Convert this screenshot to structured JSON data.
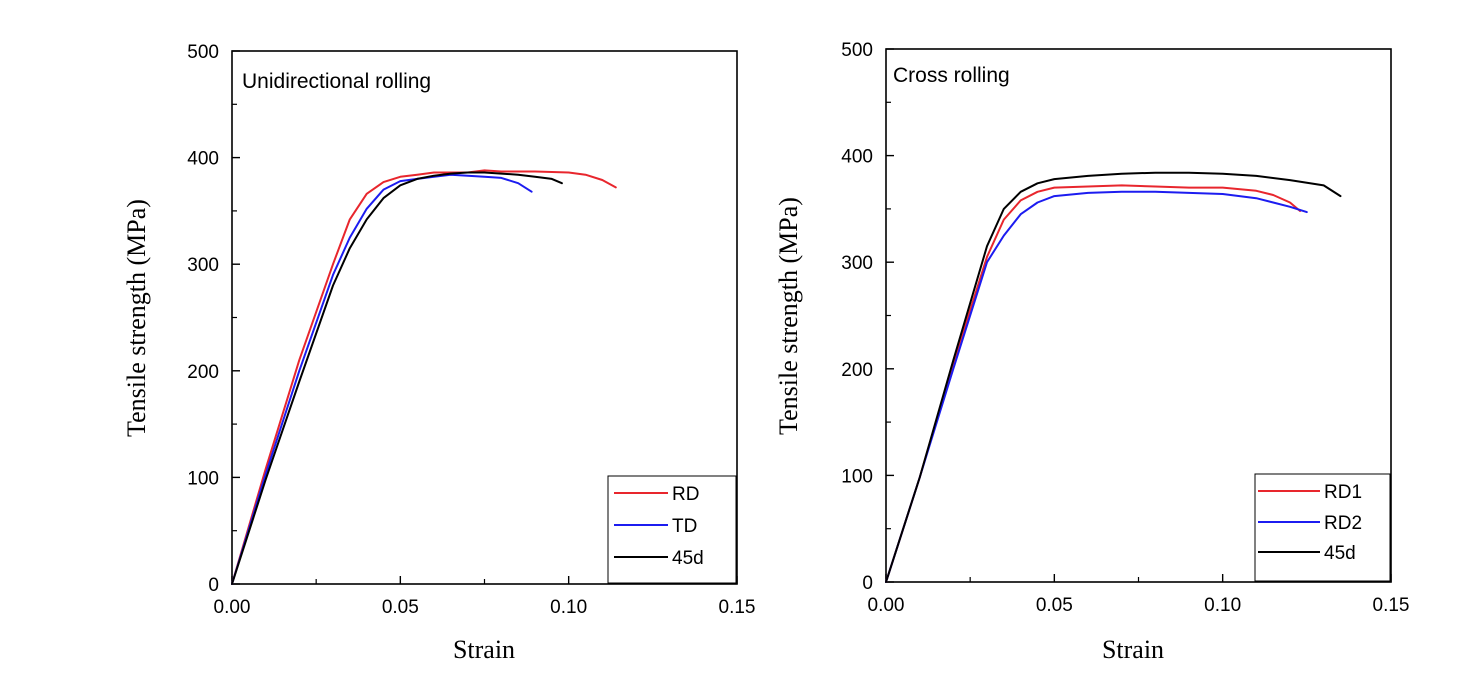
{
  "chart_data": [
    {
      "type": "line",
      "title": "Unidirectional rolling",
      "xlabel": "Strain",
      "ylabel": "Tensile strength (MPa)",
      "xlim": [
        0,
        0.15
      ],
      "ylim": [
        0,
        500
      ],
      "xticks": [
        "0.00",
        "0.05",
        "0.10",
        "0.15"
      ],
      "yticks": [
        "0",
        "100",
        "200",
        "300",
        "400",
        "500"
      ],
      "grid": false,
      "legend": "bottom-right",
      "series": [
        {
          "name": "RD",
          "color": "#e8262d",
          "x": [
            0,
            0.01,
            0.02,
            0.03,
            0.035,
            0.04,
            0.045,
            0.05,
            0.055,
            0.06,
            0.07,
            0.075,
            0.08,
            0.09,
            0.1,
            0.105,
            0.11,
            0.114
          ],
          "y": [
            0,
            108,
            210,
            300,
            342,
            366,
            377,
            382,
            384,
            386,
            386,
            388,
            387,
            387,
            386,
            384,
            379,
            372
          ]
        },
        {
          "name": "TD",
          "color": "#1c1cf0",
          "x": [
            0,
            0.01,
            0.02,
            0.03,
            0.035,
            0.04,
            0.045,
            0.05,
            0.055,
            0.06,
            0.065,
            0.07,
            0.075,
            0.08,
            0.085,
            0.089
          ],
          "y": [
            0,
            103,
            200,
            290,
            325,
            352,
            370,
            378,
            380,
            382,
            384,
            383,
            382,
            381,
            376,
            368
          ]
        },
        {
          "name": "45d",
          "color": "#000000",
          "x": [
            0,
            0.01,
            0.02,
            0.03,
            0.035,
            0.04,
            0.045,
            0.05,
            0.055,
            0.06,
            0.065,
            0.07,
            0.075,
            0.08,
            0.085,
            0.09,
            0.095,
            0.098
          ],
          "y": [
            0,
            98,
            190,
            280,
            315,
            342,
            362,
            374,
            380,
            383,
            385,
            386,
            386,
            385,
            384,
            382,
            380,
            376
          ]
        }
      ]
    },
    {
      "type": "line",
      "title": "Cross rolling",
      "xlabel": "Strain",
      "ylabel": "Tensile strength (MPa)",
      "xlim": [
        0,
        0.15
      ],
      "ylim": [
        0,
        500
      ],
      "xticks": [
        "0.00",
        "0.05",
        "0.10",
        "0.15"
      ],
      "yticks": [
        "0",
        "100",
        "200",
        "300",
        "400",
        "500"
      ],
      "grid": false,
      "legend": "bottom-right",
      "series": [
        {
          "name": "RD1",
          "color": "#e8262d",
          "x": [
            0,
            0.01,
            0.02,
            0.03,
            0.035,
            0.04,
            0.045,
            0.05,
            0.06,
            0.07,
            0.08,
            0.09,
            0.1,
            0.11,
            0.115,
            0.12,
            0.123
          ],
          "y": [
            0,
            98,
            205,
            305,
            340,
            358,
            366,
            370,
            371,
            372,
            371,
            370,
            370,
            367,
            363,
            356,
            348
          ]
        },
        {
          "name": "RD2",
          "color": "#1c1cf0",
          "x": [
            0,
            0.01,
            0.02,
            0.03,
            0.035,
            0.04,
            0.045,
            0.05,
            0.06,
            0.07,
            0.08,
            0.09,
            0.1,
            0.11,
            0.115,
            0.12,
            0.125
          ],
          "y": [
            0,
            98,
            200,
            300,
            325,
            345,
            356,
            362,
            365,
            366,
            366,
            365,
            364,
            360,
            356,
            352,
            347
          ]
        },
        {
          "name": "45d",
          "color": "#000000",
          "x": [
            0,
            0.01,
            0.02,
            0.03,
            0.035,
            0.04,
            0.045,
            0.05,
            0.06,
            0.07,
            0.08,
            0.09,
            0.1,
            0.11,
            0.12,
            0.13,
            0.135
          ],
          "y": [
            0,
            98,
            208,
            315,
            350,
            366,
            374,
            378,
            381,
            383,
            384,
            384,
            383,
            381,
            377,
            372,
            362
          ]
        }
      ]
    }
  ]
}
